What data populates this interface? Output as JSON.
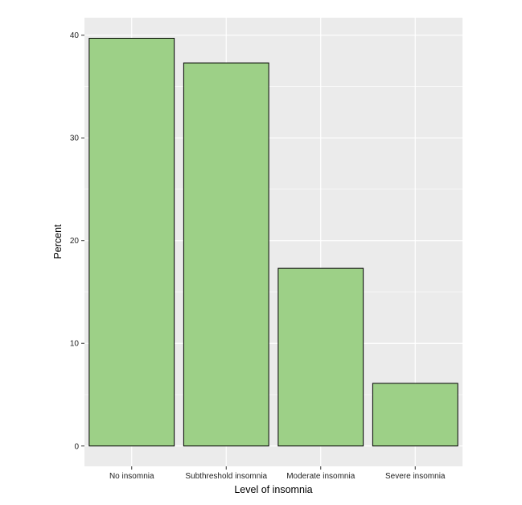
{
  "chart_data": {
    "type": "bar",
    "title": "",
    "xlabel": "Level of insomnia",
    "ylabel": "Percent",
    "categories": [
      "No insomnia",
      "Subthreshold insomnia",
      "Moderate insomnia",
      "Severe insomnia"
    ],
    "values": [
      39.7,
      37.3,
      17.3,
      6.1
    ],
    "ylim": [
      -1.98,
      41.7
    ],
    "yticks": [
      0,
      10,
      20,
      30,
      40
    ],
    "grid": true,
    "legend": "none",
    "colors": {
      "panel_background": "#ebebeb",
      "grid_line": "#ffffff",
      "bar_fill": "#9dd087",
      "bar_stroke": "#000000"
    }
  }
}
